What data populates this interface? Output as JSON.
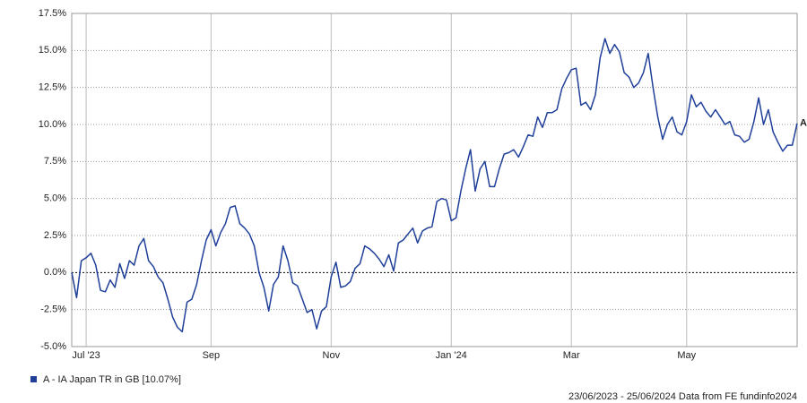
{
  "chart_data": {
    "type": "line",
    "categories": [
      null,
      null,
      null,
      "Jul '23",
      null,
      null,
      null,
      null,
      null,
      null,
      null,
      null,
      null,
      null,
      null,
      null,
      null,
      null,
      null,
      null,
      null,
      null,
      null,
      null,
      null,
      null,
      null,
      null,
      null,
      "Sep",
      null,
      null,
      null,
      null,
      null,
      null,
      null,
      null,
      null,
      null,
      null,
      null,
      null,
      null,
      null,
      null,
      null,
      null,
      null,
      null,
      null,
      null,
      null,
      null,
      "Nov",
      null,
      null,
      null,
      null,
      null,
      null,
      null,
      null,
      null,
      null,
      null,
      null,
      null,
      null,
      null,
      null,
      null,
      null,
      null,
      null,
      null,
      null,
      null,
      null,
      "Jan '24",
      null,
      null,
      null,
      null,
      null,
      null,
      null,
      null,
      null,
      null,
      null,
      null,
      null,
      null,
      null,
      null,
      null,
      null,
      null,
      null,
      null,
      null,
      null,
      null,
      "Mar",
      null,
      null,
      null,
      null,
      null,
      null,
      null,
      null,
      null,
      null,
      null,
      null,
      null,
      null,
      null,
      null,
      null,
      null,
      null,
      null,
      null,
      null,
      null,
      "May",
      null,
      null,
      null,
      null,
      null,
      null,
      null,
      null,
      null,
      null,
      null,
      null,
      null,
      null,
      null,
      null,
      null,
      null,
      null,
      null,
      null,
      null,
      null
    ],
    "series": [
      {
        "name": "A - IA Japan TR in GB [10.07%]",
        "color": "#1f3f99",
        "values": [
          0,
          -1.7,
          0.8,
          1.0,
          1.3,
          0.5,
          -1.2,
          -1.3,
          -0.5,
          -1.0,
          0.6,
          -0.4,
          0.8,
          0.5,
          1.8,
          2.3,
          0.8,
          0.4,
          -0.3,
          -0.7,
          -1.8,
          -3.0,
          -3.7,
          -4.0,
          -2.0,
          -1.8,
          -0.8,
          0.8,
          2.2,
          2.9,
          1.8,
          2.7,
          3.3,
          4.4,
          4.5,
          3.3,
          3.0,
          2.6,
          1.8,
          0.0,
          -1.0,
          -2.6,
          -0.8,
          -0.3,
          1.8,
          0.8,
          -0.7,
          -0.9,
          -1.8,
          -2.7,
          -2.5,
          -3.8,
          -2.6,
          -2.3,
          -0.3,
          0.7,
          -1.0,
          -0.9,
          -0.6,
          0.3,
          0.6,
          1.8,
          1.6,
          1.3,
          0.9,
          0.4,
          1.2,
          0.1,
          2.0,
          2.2,
          2.6,
          3.0,
          2.0,
          2.8,
          3.0,
          3.1,
          4.8,
          5.0,
          4.9,
          3.5,
          3.7,
          5.5,
          7.0,
          8.3,
          5.5,
          7.0,
          7.5,
          5.8,
          5.8,
          7.0,
          8.0,
          8.1,
          8.3,
          7.8,
          8.5,
          9.3,
          9.2,
          10.5,
          9.8,
          10.8,
          10.8,
          11.0,
          12.4,
          13.1,
          13.7,
          13.8,
          11.3,
          11.5,
          11.0,
          12.0,
          14.5,
          15.8,
          14.8,
          15.4,
          14.9,
          13.5,
          13.2,
          12.5,
          12.8,
          13.5,
          14.8,
          12.5,
          10.5,
          9.0,
          10.0,
          10.5,
          9.5,
          9.3,
          10.2,
          12.0,
          11.2,
          11.5,
          10.9,
          10.5,
          11.0,
          10.5,
          10.0,
          10.2,
          9.3,
          9.2,
          8.8,
          9.0,
          10.2,
          11.8,
          10.0,
          11.0,
          9.5,
          8.8,
          8.2,
          8.6,
          8.6,
          10.07
        ]
      }
    ],
    "annotation": "A",
    "ylim": [
      -5,
      17.5
    ],
    "yticks": [
      {
        "value": -5,
        "label": "-5.0%"
      },
      {
        "value": -2.5,
        "label": "-2.5%"
      },
      {
        "value": 0,
        "label": "0.0%"
      },
      {
        "value": 2.5,
        "label": "2.5%"
      },
      {
        "value": 5,
        "label": "5.0%"
      },
      {
        "value": 7.5,
        "label": "7.5%"
      },
      {
        "value": 10,
        "label": "10.0%"
      },
      {
        "value": 12.5,
        "label": "12.5%"
      },
      {
        "value": 15,
        "label": "15.0%"
      },
      {
        "value": 17.5,
        "label": "17.5%"
      }
    ],
    "grid": true,
    "footer": "23/06/2023 - 25/06/2024 Data from FE fundinfo2024"
  }
}
